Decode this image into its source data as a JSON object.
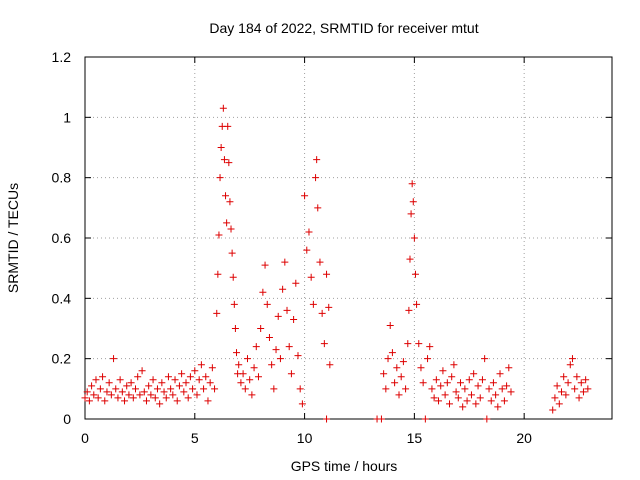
{
  "chart_data": {
    "type": "scatter",
    "title": "Day 184 of 2022, SRMTID for receiver mtut",
    "xlabel": "GPS time / hours",
    "ylabel": "SRMTID / TECUs",
    "xlim": [
      0,
      24
    ],
    "ylim": [
      0,
      1.2
    ],
    "xticks": [
      0,
      5,
      10,
      15,
      20
    ],
    "xtick_labels": [
      "0",
      "5",
      "10",
      "15",
      "20"
    ],
    "yticks": [
      0,
      0.2,
      0.4,
      0.6,
      0.8,
      1,
      1.2
    ],
    "ytick_labels": [
      "0",
      "0.2",
      "0.4",
      "0.6",
      "0.8",
      "1",
      "1.2"
    ],
    "grid": true,
    "marker": "+",
    "color": "#dd0000",
    "series": [
      {
        "name": "SRMTID",
        "points": [
          [
            0.0,
            0.07
          ],
          [
            0.1,
            0.09
          ],
          [
            0.2,
            0.06
          ],
          [
            0.3,
            0.11
          ],
          [
            0.4,
            0.08
          ],
          [
            0.5,
            0.13
          ],
          [
            0.6,
            0.07
          ],
          [
            0.7,
            0.1
          ],
          [
            0.8,
            0.14
          ],
          [
            0.9,
            0.06
          ],
          [
            1.0,
            0.09
          ],
          [
            1.1,
            0.12
          ],
          [
            1.2,
            0.08
          ],
          [
            1.3,
            0.2
          ],
          [
            1.4,
            0.1
          ],
          [
            1.5,
            0.07
          ],
          [
            1.6,
            0.13
          ],
          [
            1.7,
            0.09
          ],
          [
            1.8,
            0.06
          ],
          [
            1.9,
            0.11
          ],
          [
            2.0,
            0.08
          ],
          [
            2.1,
            0.12
          ],
          [
            2.2,
            0.07
          ],
          [
            2.3,
            0.1
          ],
          [
            2.4,
            0.14
          ],
          [
            2.5,
            0.08
          ],
          [
            2.6,
            0.16
          ],
          [
            2.7,
            0.09
          ],
          [
            2.8,
            0.06
          ],
          [
            2.9,
            0.11
          ],
          [
            3.0,
            0.08
          ],
          [
            3.1,
            0.13
          ],
          [
            3.2,
            0.07
          ],
          [
            3.3,
            0.1
          ],
          [
            3.4,
            0.05
          ],
          [
            3.5,
            0.12
          ],
          [
            3.6,
            0.09
          ],
          [
            3.7,
            0.07
          ],
          [
            3.8,
            0.14
          ],
          [
            3.9,
            0.1
          ],
          [
            4.0,
            0.08
          ],
          [
            4.1,
            0.13
          ],
          [
            4.2,
            0.06
          ],
          [
            4.3,
            0.11
          ],
          [
            4.4,
            0.15
          ],
          [
            4.5,
            0.09
          ],
          [
            4.6,
            0.12
          ],
          [
            4.7,
            0.07
          ],
          [
            4.8,
            0.14
          ],
          [
            4.9,
            0.1
          ],
          [
            5.0,
            0.16
          ],
          [
            5.1,
            0.08
          ],
          [
            5.2,
            0.13
          ],
          [
            5.3,
            0.18
          ],
          [
            5.4,
            0.1
          ],
          [
            5.5,
            0.14
          ],
          [
            5.6,
            0.06
          ],
          [
            5.7,
            0.12
          ],
          [
            5.8,
            0.17
          ],
          [
            5.9,
            0.1
          ],
          [
            6.0,
            0.35
          ],
          [
            6.05,
            0.48
          ],
          [
            6.1,
            0.61
          ],
          [
            6.15,
            0.8
          ],
          [
            6.2,
            0.9
          ],
          [
            6.25,
            0.97
          ],
          [
            6.3,
            1.03
          ],
          [
            6.35,
            0.86
          ],
          [
            6.4,
            0.74
          ],
          [
            6.45,
            0.65
          ],
          [
            6.5,
            0.97
          ],
          [
            6.55,
            0.85
          ],
          [
            6.6,
            0.72
          ],
          [
            6.65,
            0.63
          ],
          [
            6.7,
            0.55
          ],
          [
            6.75,
            0.47
          ],
          [
            6.8,
            0.38
          ],
          [
            6.85,
            0.3
          ],
          [
            6.9,
            0.22
          ],
          [
            6.95,
            0.15
          ],
          [
            7.0,
            0.18
          ],
          [
            7.1,
            0.12
          ],
          [
            7.2,
            0.15
          ],
          [
            7.3,
            0.1
          ],
          [
            7.4,
            0.2
          ],
          [
            7.5,
            0.13
          ],
          [
            7.6,
            0.08
          ],
          [
            7.7,
            0.17
          ],
          [
            7.8,
            0.24
          ],
          [
            7.9,
            0.14
          ],
          [
            8.0,
            0.3
          ],
          [
            8.1,
            0.42
          ],
          [
            8.2,
            0.51
          ],
          [
            8.3,
            0.38
          ],
          [
            8.4,
            0.27
          ],
          [
            8.5,
            0.18
          ],
          [
            8.6,
            0.1
          ],
          [
            8.7,
            0.23
          ],
          [
            8.8,
            0.34
          ],
          [
            8.9,
            0.2
          ],
          [
            9.0,
            0.43
          ],
          [
            9.1,
            0.52
          ],
          [
            9.2,
            0.36
          ],
          [
            9.3,
            0.24
          ],
          [
            9.4,
            0.15
          ],
          [
            9.5,
            0.33
          ],
          [
            9.6,
            0.45
          ],
          [
            9.7,
            0.21
          ],
          [
            9.8,
            0.1
          ],
          [
            9.9,
            0.05
          ],
          [
            10.0,
            0.74
          ],
          [
            10.1,
            0.56
          ],
          [
            10.2,
            0.62
          ],
          [
            10.3,
            0.47
          ],
          [
            10.4,
            0.38
          ],
          [
            10.5,
            0.8
          ],
          [
            10.55,
            0.86
          ],
          [
            10.6,
            0.7
          ],
          [
            10.7,
            0.52
          ],
          [
            10.8,
            0.35
          ],
          [
            10.9,
            0.25
          ],
          [
            11.0,
            0.48
          ],
          [
            11.1,
            0.37
          ],
          [
            11.15,
            0.18
          ],
          [
            11.0,
            0.0
          ],
          [
            13.3,
            0.0
          ],
          [
            13.5,
            0.0
          ],
          [
            13.6,
            0.15
          ],
          [
            13.7,
            0.1
          ],
          [
            13.8,
            0.2
          ],
          [
            13.9,
            0.31
          ],
          [
            14.0,
            0.22
          ],
          [
            14.1,
            0.12
          ],
          [
            14.2,
            0.17
          ],
          [
            14.3,
            0.08
          ],
          [
            14.4,
            0.14
          ],
          [
            14.5,
            0.19
          ],
          [
            14.6,
            0.1
          ],
          [
            14.7,
            0.25
          ],
          [
            14.75,
            0.36
          ],
          [
            14.8,
            0.53
          ],
          [
            14.85,
            0.68
          ],
          [
            14.9,
            0.78
          ],
          [
            14.95,
            0.72
          ],
          [
            15.0,
            0.6
          ],
          [
            15.05,
            0.48
          ],
          [
            15.1,
            0.38
          ],
          [
            15.2,
            0.25
          ],
          [
            15.3,
            0.17
          ],
          [
            15.4,
            0.12
          ],
          [
            15.5,
            0.0
          ],
          [
            15.6,
            0.2
          ],
          [
            15.7,
            0.24
          ],
          [
            15.8,
            0.1
          ],
          [
            15.9,
            0.07
          ],
          [
            16.0,
            0.13
          ],
          [
            16.1,
            0.06
          ],
          [
            16.2,
            0.11
          ],
          [
            16.3,
            0.16
          ],
          [
            16.4,
            0.08
          ],
          [
            16.5,
            0.12
          ],
          [
            16.6,
            0.05
          ],
          [
            16.7,
            0.14
          ],
          [
            16.8,
            0.18
          ],
          [
            16.9,
            0.09
          ],
          [
            17.0,
            0.07
          ],
          [
            17.1,
            0.12
          ],
          [
            17.2,
            0.04
          ],
          [
            17.3,
            0.1
          ],
          [
            17.4,
            0.06
          ],
          [
            17.5,
            0.13
          ],
          [
            17.6,
            0.08
          ],
          [
            17.7,
            0.15
          ],
          [
            17.8,
            0.05
          ],
          [
            17.9,
            0.11
          ],
          [
            18.0,
            0.07
          ],
          [
            18.1,
            0.13
          ],
          [
            18.2,
            0.2
          ],
          [
            18.3,
            0.0
          ],
          [
            18.4,
            0.1
          ],
          [
            18.5,
            0.06
          ],
          [
            18.6,
            0.12
          ],
          [
            18.7,
            0.08
          ],
          [
            18.8,
            0.04
          ],
          [
            18.9,
            0.15
          ],
          [
            19.0,
            0.1
          ],
          [
            19.1,
            0.06
          ],
          [
            19.2,
            0.11
          ],
          [
            19.3,
            0.17
          ],
          [
            19.4,
            0.09
          ],
          [
            21.3,
            0.03
          ],
          [
            21.4,
            0.07
          ],
          [
            21.5,
            0.11
          ],
          [
            21.6,
            0.05
          ],
          [
            21.7,
            0.09
          ],
          [
            21.8,
            0.14
          ],
          [
            21.9,
            0.08
          ],
          [
            22.0,
            0.12
          ],
          [
            22.1,
            0.18
          ],
          [
            22.2,
            0.2
          ],
          [
            22.3,
            0.1
          ],
          [
            22.4,
            0.14
          ],
          [
            22.5,
            0.07
          ],
          [
            22.6,
            0.12
          ],
          [
            22.7,
            0.09
          ],
          [
            22.8,
            0.13
          ],
          [
            22.9,
            0.1
          ]
        ]
      }
    ]
  }
}
